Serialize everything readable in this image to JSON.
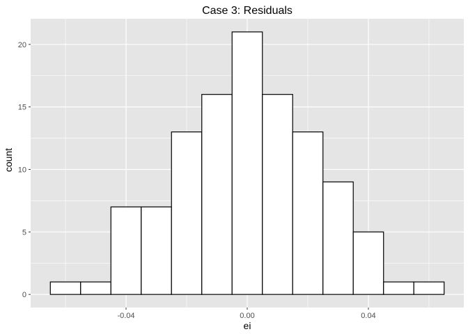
{
  "chart_data": {
    "type": "bar",
    "title": "Case 3: Residuals",
    "xlabel": "ei",
    "ylabel": "count",
    "bins": [
      {
        "x0": -0.065,
        "x1": -0.055,
        "count": 1
      },
      {
        "x0": -0.055,
        "x1": -0.045,
        "count": 1
      },
      {
        "x0": -0.045,
        "x1": -0.035,
        "count": 7
      },
      {
        "x0": -0.035,
        "x1": -0.025,
        "count": 7
      },
      {
        "x0": -0.025,
        "x1": -0.015,
        "count": 13
      },
      {
        "x0": -0.015,
        "x1": -0.005,
        "count": 16
      },
      {
        "x0": -0.005,
        "x1": 0.005,
        "count": 21
      },
      {
        "x0": 0.005,
        "x1": 0.015,
        "count": 16
      },
      {
        "x0": 0.015,
        "x1": 0.025,
        "count": 13
      },
      {
        "x0": 0.025,
        "x1": 0.035,
        "count": 9
      },
      {
        "x0": 0.035,
        "x1": 0.045,
        "count": 5
      },
      {
        "x0": 0.045,
        "x1": 0.055,
        "count": 1
      },
      {
        "x0": 0.055,
        "x1": 0.065,
        "count": 1
      }
    ],
    "xlim": [
      -0.0715,
      0.0715
    ],
    "ylim": [
      -1.05,
      22.05
    ],
    "x_ticks": [
      -0.04,
      0.0,
      0.04
    ],
    "x_tick_labels": [
      "-0.04",
      "0.00",
      "0.04"
    ],
    "y_ticks": [
      0,
      5,
      10,
      15,
      20
    ],
    "y_tick_labels": [
      "0",
      "5",
      "10",
      "15",
      "20"
    ],
    "grid": true,
    "colors": {
      "panel_background": "#E5E5E5",
      "grid": "#FFFFFF",
      "bar_fill": "#FFFFFF",
      "bar_outline": "#000000",
      "tick_text": "#4D4D4D"
    }
  }
}
